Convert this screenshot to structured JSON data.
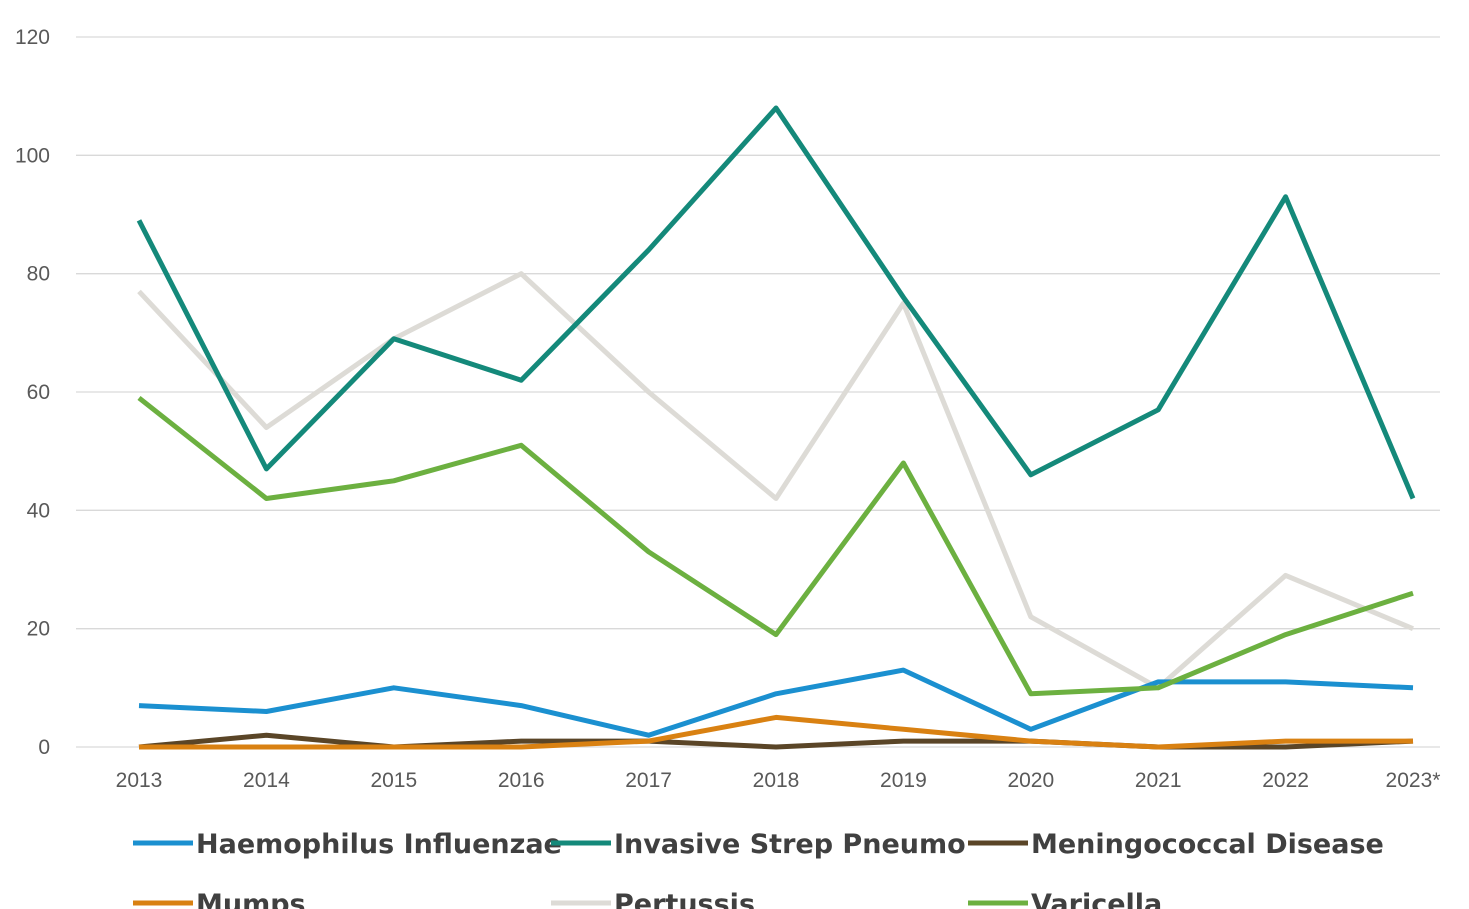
{
  "chart_data": {
    "type": "line",
    "title": "",
    "xlabel": "",
    "ylabel": "",
    "categories": [
      "2013",
      "2014",
      "2015",
      "2016",
      "2017",
      "2018",
      "2019",
      "2020",
      "2021",
      "2022",
      "2023*"
    ],
    "ylim": [
      0,
      120
    ],
    "yticks": [
      "0",
      "20",
      "40",
      "60",
      "80",
      "100",
      "120"
    ],
    "grid": true,
    "legend_position": "bottom",
    "series": [
      {
        "name": "Haemophilus Influenzae",
        "color": "#1b90d0",
        "values": [
          7,
          6,
          10,
          7,
          2,
          9,
          13,
          3,
          11,
          11,
          10
        ]
      },
      {
        "name": "Invasive Strep Pneumo",
        "color": "#14897a",
        "values": [
          89,
          47,
          69,
          62,
          84,
          108,
          76,
          46,
          57,
          93,
          42
        ]
      },
      {
        "name": "Meningococcal Disease",
        "color": "#5a4527",
        "values": [
          0,
          2,
          0,
          1,
          1,
          0,
          1,
          1,
          0,
          0,
          1
        ]
      },
      {
        "name": "Mumps",
        "color": "#d98112",
        "values": [
          0,
          0,
          0,
          0,
          1,
          5,
          3,
          1,
          0,
          1,
          1
        ]
      },
      {
        "name": "Pertussis",
        "color": "#dddbd6",
        "values": [
          77,
          54,
          69,
          80,
          60,
          42,
          75,
          22,
          10,
          29,
          20
        ]
      },
      {
        "name": "Varicella",
        "color": "#6cb040",
        "values": [
          59,
          42,
          45,
          51,
          33,
          19,
          48,
          9,
          10,
          19,
          26
        ]
      }
    ]
  }
}
